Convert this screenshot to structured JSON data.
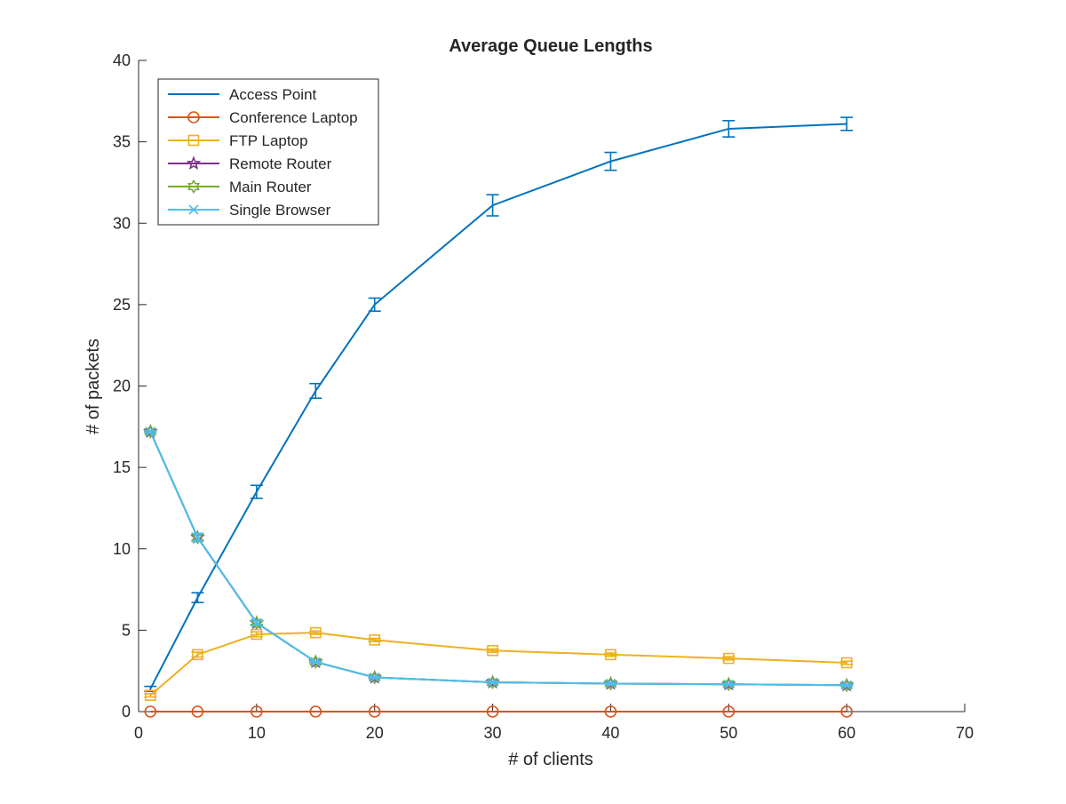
{
  "chart_data": {
    "type": "line",
    "title": "Average Queue Lengths",
    "xlabel": "# of clients",
    "ylabel": "# of packets",
    "xlim": [
      0,
      70
    ],
    "ylim": [
      0,
      40
    ],
    "xticks": [
      0,
      10,
      20,
      30,
      40,
      50,
      60,
      70
    ],
    "yticks": [
      0,
      5,
      10,
      15,
      20,
      25,
      30,
      35,
      40
    ],
    "grid": false,
    "legend_position": "top-left",
    "x": [
      1,
      5,
      10,
      15,
      20,
      30,
      40,
      50,
      60
    ],
    "series": [
      {
        "name": "Access Point",
        "color": "#0072BD",
        "marker": "none",
        "values": [
          1.4,
          7.0,
          13.5,
          19.7,
          25.0,
          31.1,
          33.8,
          35.8,
          36.1
        ],
        "errors": [
          0.15,
          0.3,
          0.4,
          0.45,
          0.4,
          0.65,
          0.55,
          0.5,
          0.4
        ]
      },
      {
        "name": "Conference Laptop",
        "color": "#D95319",
        "marker": "circle",
        "values": [
          0.0,
          0.0,
          0.0,
          0.0,
          0.0,
          0.0,
          0.0,
          0.0,
          0.0
        ],
        "errors": [
          0,
          0,
          0,
          0,
          0,
          0,
          0,
          0,
          0
        ]
      },
      {
        "name": "FTP Laptop",
        "color": "#EDB120",
        "marker": "square",
        "values": [
          1.0,
          3.5,
          4.75,
          4.85,
          4.4,
          3.75,
          3.5,
          3.27,
          3.0
        ],
        "errors": [
          0.1,
          0.15,
          0.15,
          0.1,
          0.1,
          0.1,
          0.1,
          0.1,
          0.1
        ]
      },
      {
        "name": "Remote Router",
        "color": "#7E2F8E",
        "marker": "pentagram",
        "values": [
          17.2,
          10.7,
          5.45,
          3.05,
          2.1,
          1.8,
          1.72,
          1.68,
          1.62
        ],
        "errors": [
          0.05,
          0.2,
          0.1,
          0.05,
          0.05,
          0.05,
          0.05,
          0.05,
          0.05
        ]
      },
      {
        "name": "Main Router",
        "color": "#77AC30",
        "marker": "hexagram",
        "values": [
          17.2,
          10.7,
          5.45,
          3.05,
          2.1,
          1.8,
          1.72,
          1.68,
          1.62
        ],
        "errors": [
          0.05,
          0.2,
          0.1,
          0.05,
          0.05,
          0.05,
          0.05,
          0.05,
          0.05
        ]
      },
      {
        "name": "Single Browser",
        "color": "#4DBEEE",
        "marker": "x",
        "values": [
          17.2,
          10.7,
          5.45,
          3.05,
          2.1,
          1.8,
          1.72,
          1.68,
          1.62
        ],
        "errors": [
          0.05,
          0.25,
          0.15,
          0.05,
          0.05,
          0.05,
          0.05,
          0.05,
          0.05
        ]
      }
    ]
  }
}
